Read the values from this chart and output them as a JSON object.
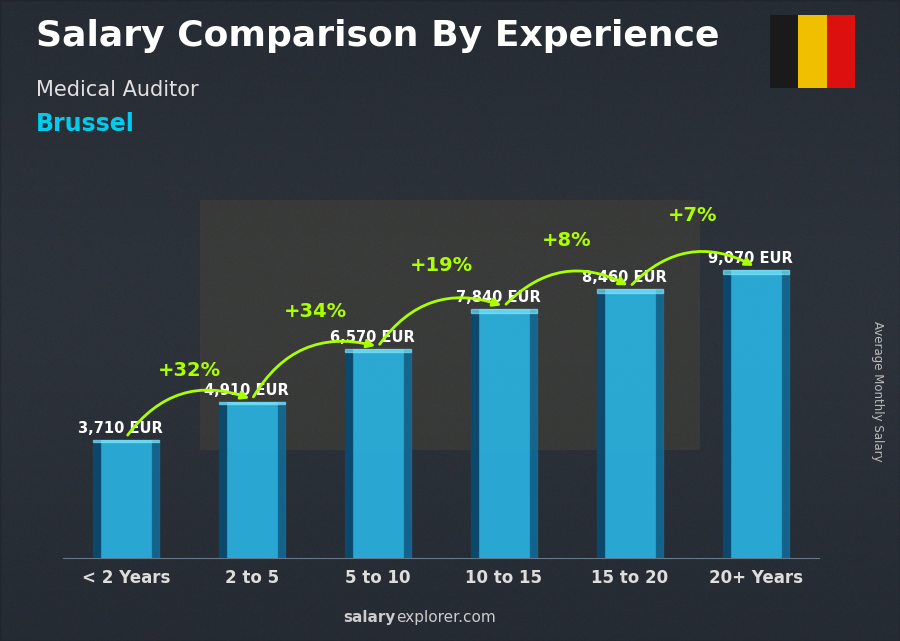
{
  "title": "Salary Comparison By Experience",
  "subtitle": "Medical Auditor",
  "city": "Brussel",
  "ylabel": "Average Monthly Salary",
  "watermark_bold": "salary",
  "watermark_normal": "explorer.com",
  "categories": [
    "< 2 Years",
    "2 to 5",
    "5 to 10",
    "10 to 15",
    "15 to 20",
    "20+ Years"
  ],
  "values": [
    3710,
    4910,
    6570,
    7840,
    8460,
    9070
  ],
  "value_labels": [
    "3,710 EUR",
    "4,910 EUR",
    "6,570 EUR",
    "7,840 EUR",
    "8,460 EUR",
    "9,070 EUR"
  ],
  "pct_labels": [
    "+32%",
    "+34%",
    "+19%",
    "+8%",
    "+7%"
  ],
  "bar_color_main": "#2ab8e8",
  "bar_color_light": "#55d0f8",
  "bar_color_dark": "#1070a0",
  "bar_color_edge_dark": "#0a4a70",
  "bg_color": "#3a3a4a",
  "bg_overlay": "#00000088",
  "title_color": "#ffffff",
  "subtitle_color": "#e0e0e0",
  "city_color": "#00ccee",
  "value_color": "#ffffff",
  "pct_color": "#aaff00",
  "arrow_color": "#aaff00",
  "xlabel_color": "#dddddd",
  "ylabel_color": "#bbbbbb",
  "watermark_color": "#cccccc",
  "flag_black": "#1a1a1a",
  "flag_yellow": "#f0c000",
  "flag_red": "#dd1010",
  "title_fontsize": 26,
  "subtitle_fontsize": 15,
  "city_fontsize": 17,
  "value_fontsize": 10.5,
  "pct_fontsize": 14,
  "xlabel_fontsize": 12,
  "watermark_fontsize": 11
}
